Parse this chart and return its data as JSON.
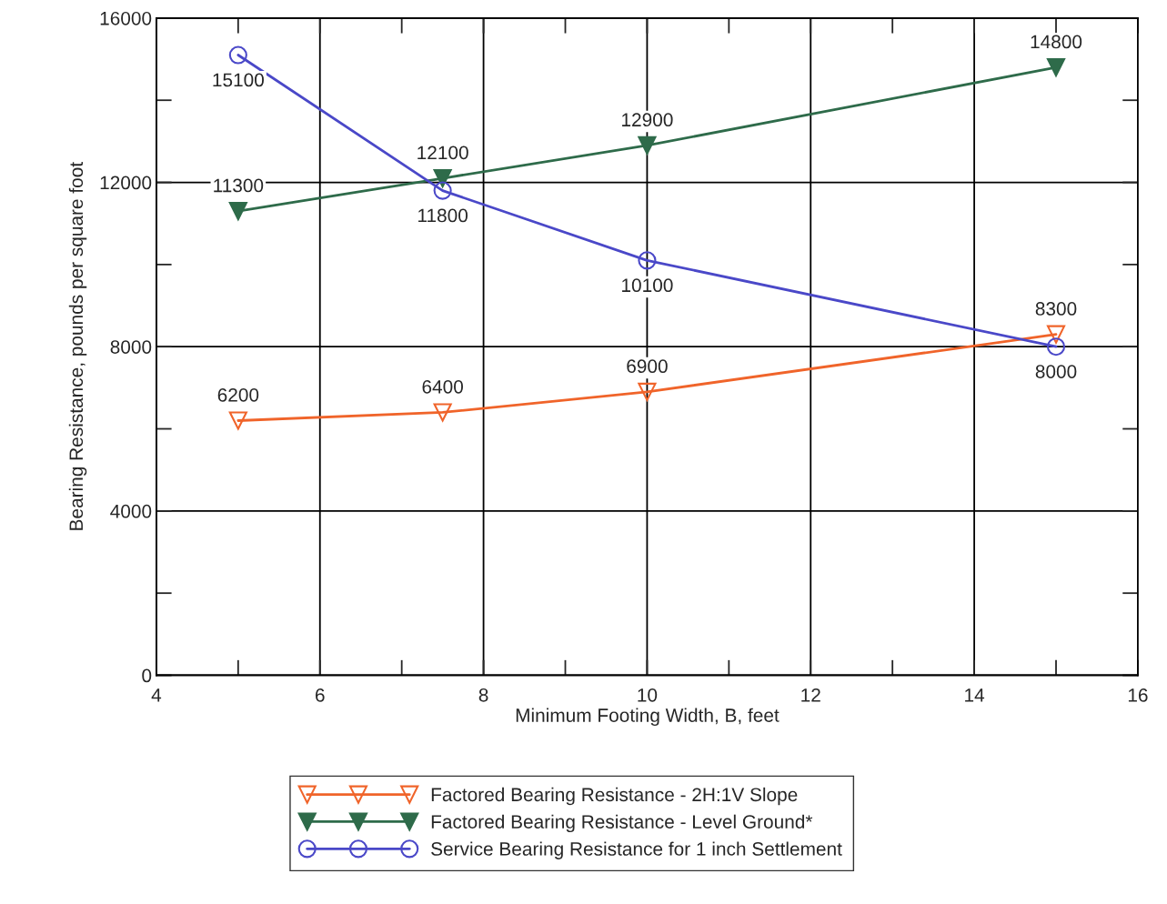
{
  "chart_data": {
    "type": "line",
    "xlabel": "Minimum Footing Width, B, feet",
    "ylabel": "Bearing Resistance, pounds per square foot",
    "x": [
      5,
      7.5,
      10,
      15
    ],
    "xlim": [
      4,
      16
    ],
    "xticks": [
      4,
      6,
      8,
      10,
      12,
      14,
      16
    ],
    "ylim": [
      0,
      16000
    ],
    "yticks": [
      0,
      4000,
      8000,
      12000,
      16000
    ],
    "grid": true,
    "legend": "bottom",
    "data_labels": true,
    "line_style": "solid",
    "series": [
      {
        "name": "Factored Bearing Resistance - 2H:1V Slope",
        "color": "#f0642a",
        "marker": "triangle",
        "values": [
          6200,
          6400,
          6900,
          8300
        ]
      },
      {
        "name": "Factored Bearing Resistance - Level Ground*",
        "color": "#2e6b4a",
        "marker": "triangle",
        "values": [
          11300,
          12100,
          12900,
          14800
        ]
      },
      {
        "name": "Service Bearing Resistance for 1 inch Settlement",
        "color": "#4a48c8",
        "marker": "circle",
        "values": [
          15100,
          11800,
          10100,
          8000
        ]
      }
    ]
  }
}
